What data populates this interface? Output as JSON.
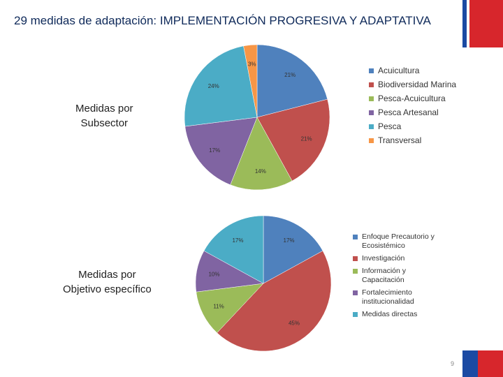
{
  "header": {
    "title": "29 medidas de adaptación: IMPLEMENTACIÓN PROGRESIVA Y ADAPTATIVA"
  },
  "labels": {
    "subsector_line1": "Medidas por",
    "subsector_line2": "Subsector",
    "objetivo_line1": "Medidas por",
    "objetivo_line2": "Objetivo específico"
  },
  "page_number": "9",
  "colors": {
    "blue": "#4f81bd",
    "red": "#c0504d",
    "green": "#9bbb59",
    "purple": "#8064a2",
    "teal": "#4bacc6",
    "orange": "#f79646"
  },
  "chart_data": [
    {
      "type": "pie",
      "title": "Medidas por Subsector",
      "categories": [
        "Acuicultura",
        "Biodiversidad Marina",
        "Pesca-Acuicultura",
        "Pesca Artesanal",
        "Pesca",
        "Transversal"
      ],
      "values": [
        21,
        21,
        14,
        17,
        24,
        3
      ],
      "labels": [
        "21%",
        "21%",
        "14%",
        "17%",
        "24%",
        "3%"
      ],
      "colors": [
        "#4f81bd",
        "#c0504d",
        "#9bbb59",
        "#8064a2",
        "#4bacc6",
        "#f79646"
      ],
      "legend": "right"
    },
    {
      "type": "pie",
      "title": "Medidas por Objetivo específico",
      "categories": [
        "Enfoque Precautorio y Ecosistémico",
        "Investigación",
        "Información y Capacitación",
        "Fortalecimiento institucionalidad",
        "Medidas directas"
      ],
      "values": [
        17,
        45,
        11,
        10,
        17
      ],
      "labels": [
        "17%",
        "45%",
        "11%",
        "10%",
        "17%"
      ],
      "colors": [
        "#4f81bd",
        "#c0504d",
        "#9bbb59",
        "#8064a2",
        "#4bacc6"
      ],
      "legend": "right"
    }
  ]
}
